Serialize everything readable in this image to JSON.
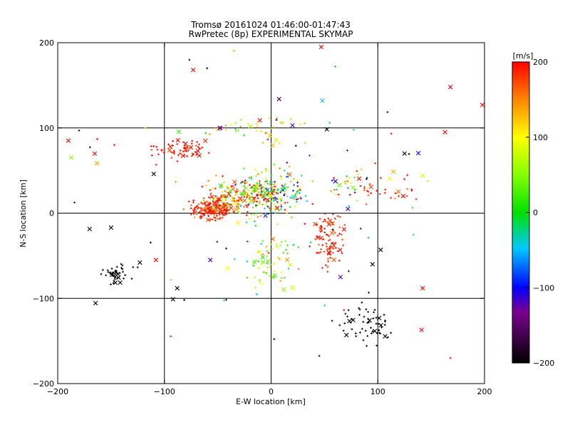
{
  "chart_data": {
    "type": "scatter",
    "title": "Tromsø 20161024 01:46:00-01:47:43",
    "subtitle": "RwPretec (8p) EXPERIMENTAL SKYMAP",
    "xlabel": "E-W location [km]",
    "ylabel": "N-S location [km]",
    "xlim": [
      -200,
      200
    ],
    "ylim": [
      -200,
      200
    ],
    "x_ticks": [
      -200,
      -100,
      0,
      100,
      200
    ],
    "y_ticks": [
      -200,
      -100,
      0,
      100,
      200
    ],
    "grid": true,
    "colorbar": {
      "label": "[m/s]",
      "range": [
        -200,
        200
      ],
      "ticks": [
        -200,
        -100,
        0,
        100,
        200
      ],
      "colormap": "black-purple-blue-cyan-green-yellow-red"
    },
    "markers": [
      "plus",
      "cross"
    ],
    "clusters": [
      {
        "cx": -55,
        "cy": 5,
        "sx": 10,
        "sy": 6,
        "v": 185,
        "vs": 25,
        "n": 200
      },
      {
        "cx": -30,
        "cy": 20,
        "sx": 15,
        "sy": 10,
        "v": 150,
        "vs": 70,
        "n": 180
      },
      {
        "cx": 0,
        "cy": 25,
        "sx": 15,
        "sy": 15,
        "v": 40,
        "vs": 110,
        "n": 200
      },
      {
        "cx": -85,
        "cy": 75,
        "sx": 12,
        "sy": 6,
        "v": 190,
        "vs": 15,
        "n": 70
      },
      {
        "cx": 55,
        "cy": -30,
        "sx": 8,
        "sy": 15,
        "v": 190,
        "vs": 15,
        "n": 90
      },
      {
        "cx": -145,
        "cy": -72,
        "sx": 7,
        "sy": 5,
        "v": -200,
        "vs": 0,
        "n": 45
      },
      {
        "cx": 90,
        "cy": -130,
        "sx": 12,
        "sy": 12,
        "v": -200,
        "vs": 0,
        "n": 60
      },
      {
        "cx": 0,
        "cy": -55,
        "sx": 15,
        "sy": 18,
        "v": 60,
        "vs": 60,
        "n": 70
      },
      {
        "cx": 105,
        "cy": 30,
        "sx": 20,
        "sy": 10,
        "v": 180,
        "vs": 30,
        "n": 35
      },
      {
        "cx": -20,
        "cy": 100,
        "sx": 25,
        "sy": 8,
        "v": 110,
        "vs": 60,
        "n": 40
      },
      {
        "cx": 70,
        "cy": 30,
        "sx": 10,
        "sy": 10,
        "v": 40,
        "vs": 150,
        "n": 25
      },
      {
        "cx": 0,
        "cy": 0,
        "sx": 100,
        "sy": 90,
        "v": 0,
        "vs": 200,
        "n": 60
      }
    ],
    "points": [
      {
        "x": -190,
        "y": 85,
        "v": 200,
        "m": "x"
      },
      {
        "x": 47,
        "y": 195,
        "v": 200,
        "m": "x"
      },
      {
        "x": 168,
        "y": 148,
        "v": 200,
        "m": "x"
      },
      {
        "x": 198,
        "y": 127,
        "v": 200,
        "m": "x"
      },
      {
        "x": 48,
        "y": 132,
        "v": -50,
        "m": "x"
      },
      {
        "x": 142,
        "y": -88,
        "v": 200,
        "m": "x"
      },
      {
        "x": 141,
        "y": -137,
        "v": 200,
        "m": "x"
      },
      {
        "x": 168,
        "y": -170,
        "v": 200,
        "m": "+"
      },
      {
        "x": -92,
        "y": -101,
        "v": -200,
        "m": "x"
      },
      {
        "x": -150,
        "y": -17,
        "v": -200,
        "m": "x"
      },
      {
        "x": -180,
        "y": 97,
        "v": -200,
        "m": "+"
      },
      {
        "x": -163,
        "y": 87,
        "v": 200,
        "m": "+"
      },
      {
        "x": -147,
        "y": 80,
        "v": 200,
        "m": "+"
      },
      {
        "x": -57,
        "y": -55,
        "v": -120,
        "m": "x"
      },
      {
        "x": -73,
        "y": 168,
        "v": 200,
        "m": "x"
      },
      {
        "x": 60,
        "y": 172,
        "v": 0,
        "m": "+"
      },
      {
        "x": -48,
        "y": 100,
        "v": -120,
        "m": "x"
      },
      {
        "x": 20,
        "y": 103,
        "v": -120,
        "m": "x"
      },
      {
        "x": 72,
        "y": 5,
        "v": -120,
        "m": "x"
      },
      {
        "x": 65,
        "y": -75,
        "v": -120,
        "m": "x"
      },
      {
        "x": -41,
        "y": -65,
        "v": 100,
        "m": "x"
      },
      {
        "x": -108,
        "y": -55,
        "v": 200,
        "m": "x"
      },
      {
        "x": -88,
        "y": -88,
        "v": -200,
        "m": "x"
      },
      {
        "x": -123,
        "y": -58,
        "v": -200,
        "m": "x"
      },
      {
        "x": 163,
        "y": 95,
        "v": 200,
        "m": "x"
      },
      {
        "x": 142,
        "y": 44,
        "v": 80,
        "m": "x"
      },
      {
        "x": 125,
        "y": 70,
        "v": -200,
        "m": "x"
      },
      {
        "x": 95,
        "y": -60,
        "v": -200,
        "m": "x"
      },
      {
        "x": -110,
        "y": 46,
        "v": -200,
        "m": "x"
      },
      {
        "x": -60,
        "y": 170,
        "v": -200,
        "m": "+"
      }
    ]
  }
}
